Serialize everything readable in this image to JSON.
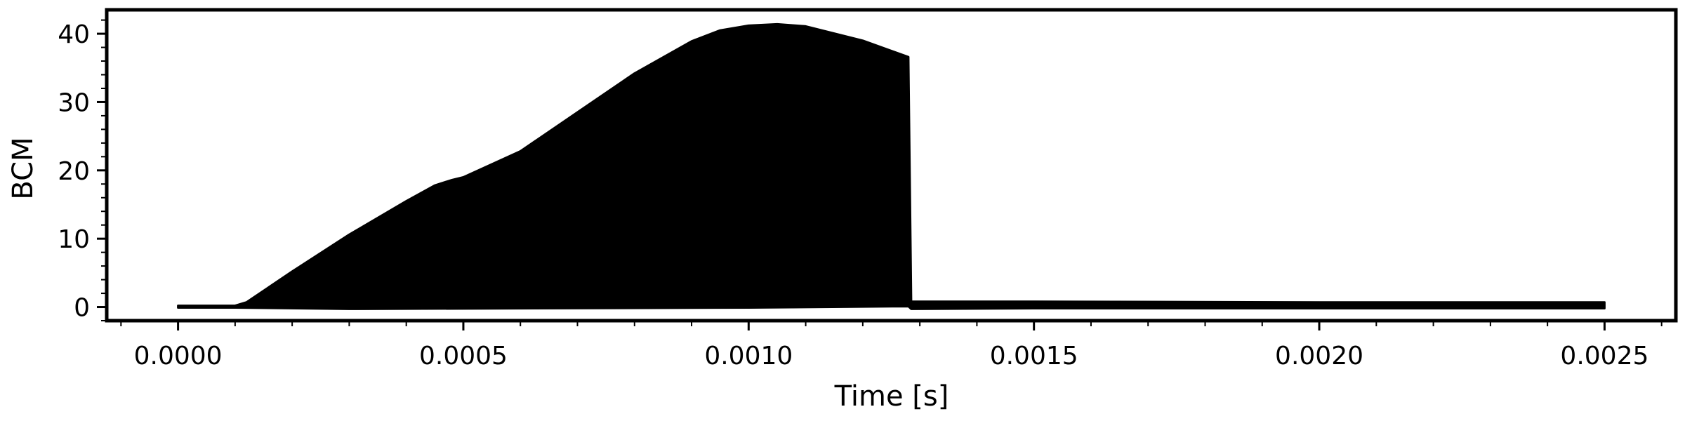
{
  "chart_data": {
    "type": "area",
    "title": "",
    "xlabel": "Time [s]",
    "ylabel": "BCM",
    "xlim": [
      -0.000125,
      0.002625
    ],
    "ylim": [
      -2.0,
      43.5
    ],
    "x_ticks": [
      0.0,
      0.0005,
      0.001,
      0.0015,
      0.002,
      0.0025
    ],
    "x_tick_labels": [
      "0.0000",
      "0.0005",
      "0.0010",
      "0.0015",
      "0.0020",
      "0.0025"
    ],
    "y_ticks": [
      0,
      10,
      20,
      30,
      40
    ],
    "y_tick_labels": [
      "0",
      "10",
      "20",
      "30",
      "40"
    ],
    "minor_ticks": true,
    "grid": false,
    "series_color": "#000000",
    "envelope_upper": {
      "x": [
        0.0,
        0.0001,
        0.00012,
        0.0002,
        0.0003,
        0.0004,
        0.00045,
        0.00048,
        0.0005,
        0.0006,
        0.0007,
        0.0008,
        0.0009,
        0.00095,
        0.001,
        0.00105,
        0.0011,
        0.0012,
        0.00128,
        0.001285,
        0.0015,
        0.002,
        0.0025
      ],
      "y": [
        0.2,
        0.2,
        0.7,
        5.2,
        10.6,
        15.5,
        17.8,
        18.6,
        19.0,
        22.8,
        28.5,
        34.2,
        38.9,
        40.5,
        41.2,
        41.4,
        41.1,
        39.0,
        36.6,
        0.8,
        0.8,
        0.7,
        0.7
      ]
    },
    "envelope_lower": {
      "x": [
        0.0,
        0.0001,
        0.0003,
        0.001,
        0.00128,
        0.001285,
        0.0015,
        0.002,
        0.0025
      ],
      "y": [
        -0.1,
        -0.1,
        -0.3,
        -0.1,
        0.1,
        -0.3,
        -0.2,
        -0.2,
        -0.2
      ]
    }
  }
}
